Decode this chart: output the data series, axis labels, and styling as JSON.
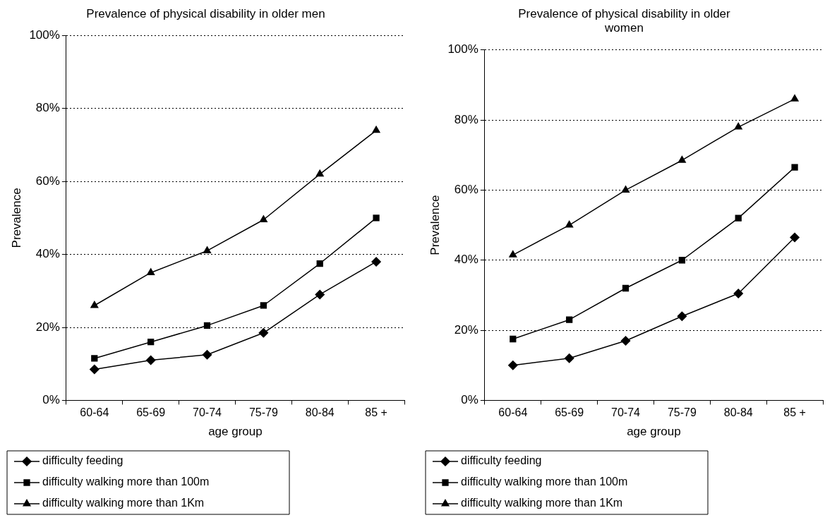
{
  "chart_data": [
    {
      "type": "line",
      "title": "Prevalence of physical disability in older men",
      "xlabel": "age group",
      "ylabel": "Prevalence",
      "categories": [
        "60-64",
        "65-69",
        "70-74",
        "75-79",
        "80-84",
        "85 +"
      ],
      "ylim": [
        0,
        100
      ],
      "yticks": [
        {
          "value": 0,
          "label": "0%"
        },
        {
          "value": 20,
          "label": "20%"
        },
        {
          "value": 40,
          "label": "40%"
        },
        {
          "value": 60,
          "label": "60%"
        },
        {
          "value": 80,
          "label": "80%"
        },
        {
          "value": 100,
          "label": "100%"
        }
      ],
      "grid": "y",
      "legend": "bottom",
      "line_style": "solid",
      "series": [
        {
          "name": "difficulty feeding",
          "color": "#000000",
          "marker": "diamond",
          "values": [
            8.5,
            11,
            12.5,
            18.5,
            29,
            38
          ]
        },
        {
          "name": "difficulty walking more than 100m",
          "color": "#000000",
          "marker": "square",
          "values": [
            11.5,
            16,
            20.5,
            26,
            37.5,
            50
          ]
        },
        {
          "name": "difficulty walking more than 1Km",
          "color": "#000000",
          "marker": "triangle",
          "values": [
            26,
            35,
            41,
            49.5,
            62,
            74
          ]
        }
      ]
    },
    {
      "type": "line",
      "title": "Prevalence of physical disability in older women",
      "xlabel": "age group",
      "ylabel": "Prevalence",
      "categories": [
        "60-64",
        "65-69",
        "70-74",
        "75-79",
        "80-84",
        "85 +"
      ],
      "ylim": [
        0,
        100
      ],
      "yticks": [
        {
          "value": 0,
          "label": "0%"
        },
        {
          "value": 20,
          "label": "20%"
        },
        {
          "value": 40,
          "label": "40%"
        },
        {
          "value": 60,
          "label": "60%"
        },
        {
          "value": 80,
          "label": "80%"
        },
        {
          "value": 100,
          "label": "100%"
        }
      ],
      "grid": "y",
      "legend": "bottom",
      "line_style": "solid",
      "series": [
        {
          "name": "difficulty feeding",
          "color": "#000000",
          "marker": "diamond",
          "values": [
            10,
            12,
            17,
            24,
            30.5,
            46.5
          ]
        },
        {
          "name": "difficulty walking more than 100m",
          "color": "#000000",
          "marker": "square",
          "values": [
            17.5,
            23,
            32,
            40,
            52,
            66.5
          ]
        },
        {
          "name": "difficulty walking more than 1Km",
          "color": "#000000",
          "marker": "triangle",
          "values": [
            41.5,
            50,
            60,
            68.5,
            78,
            86
          ]
        }
      ]
    }
  ]
}
